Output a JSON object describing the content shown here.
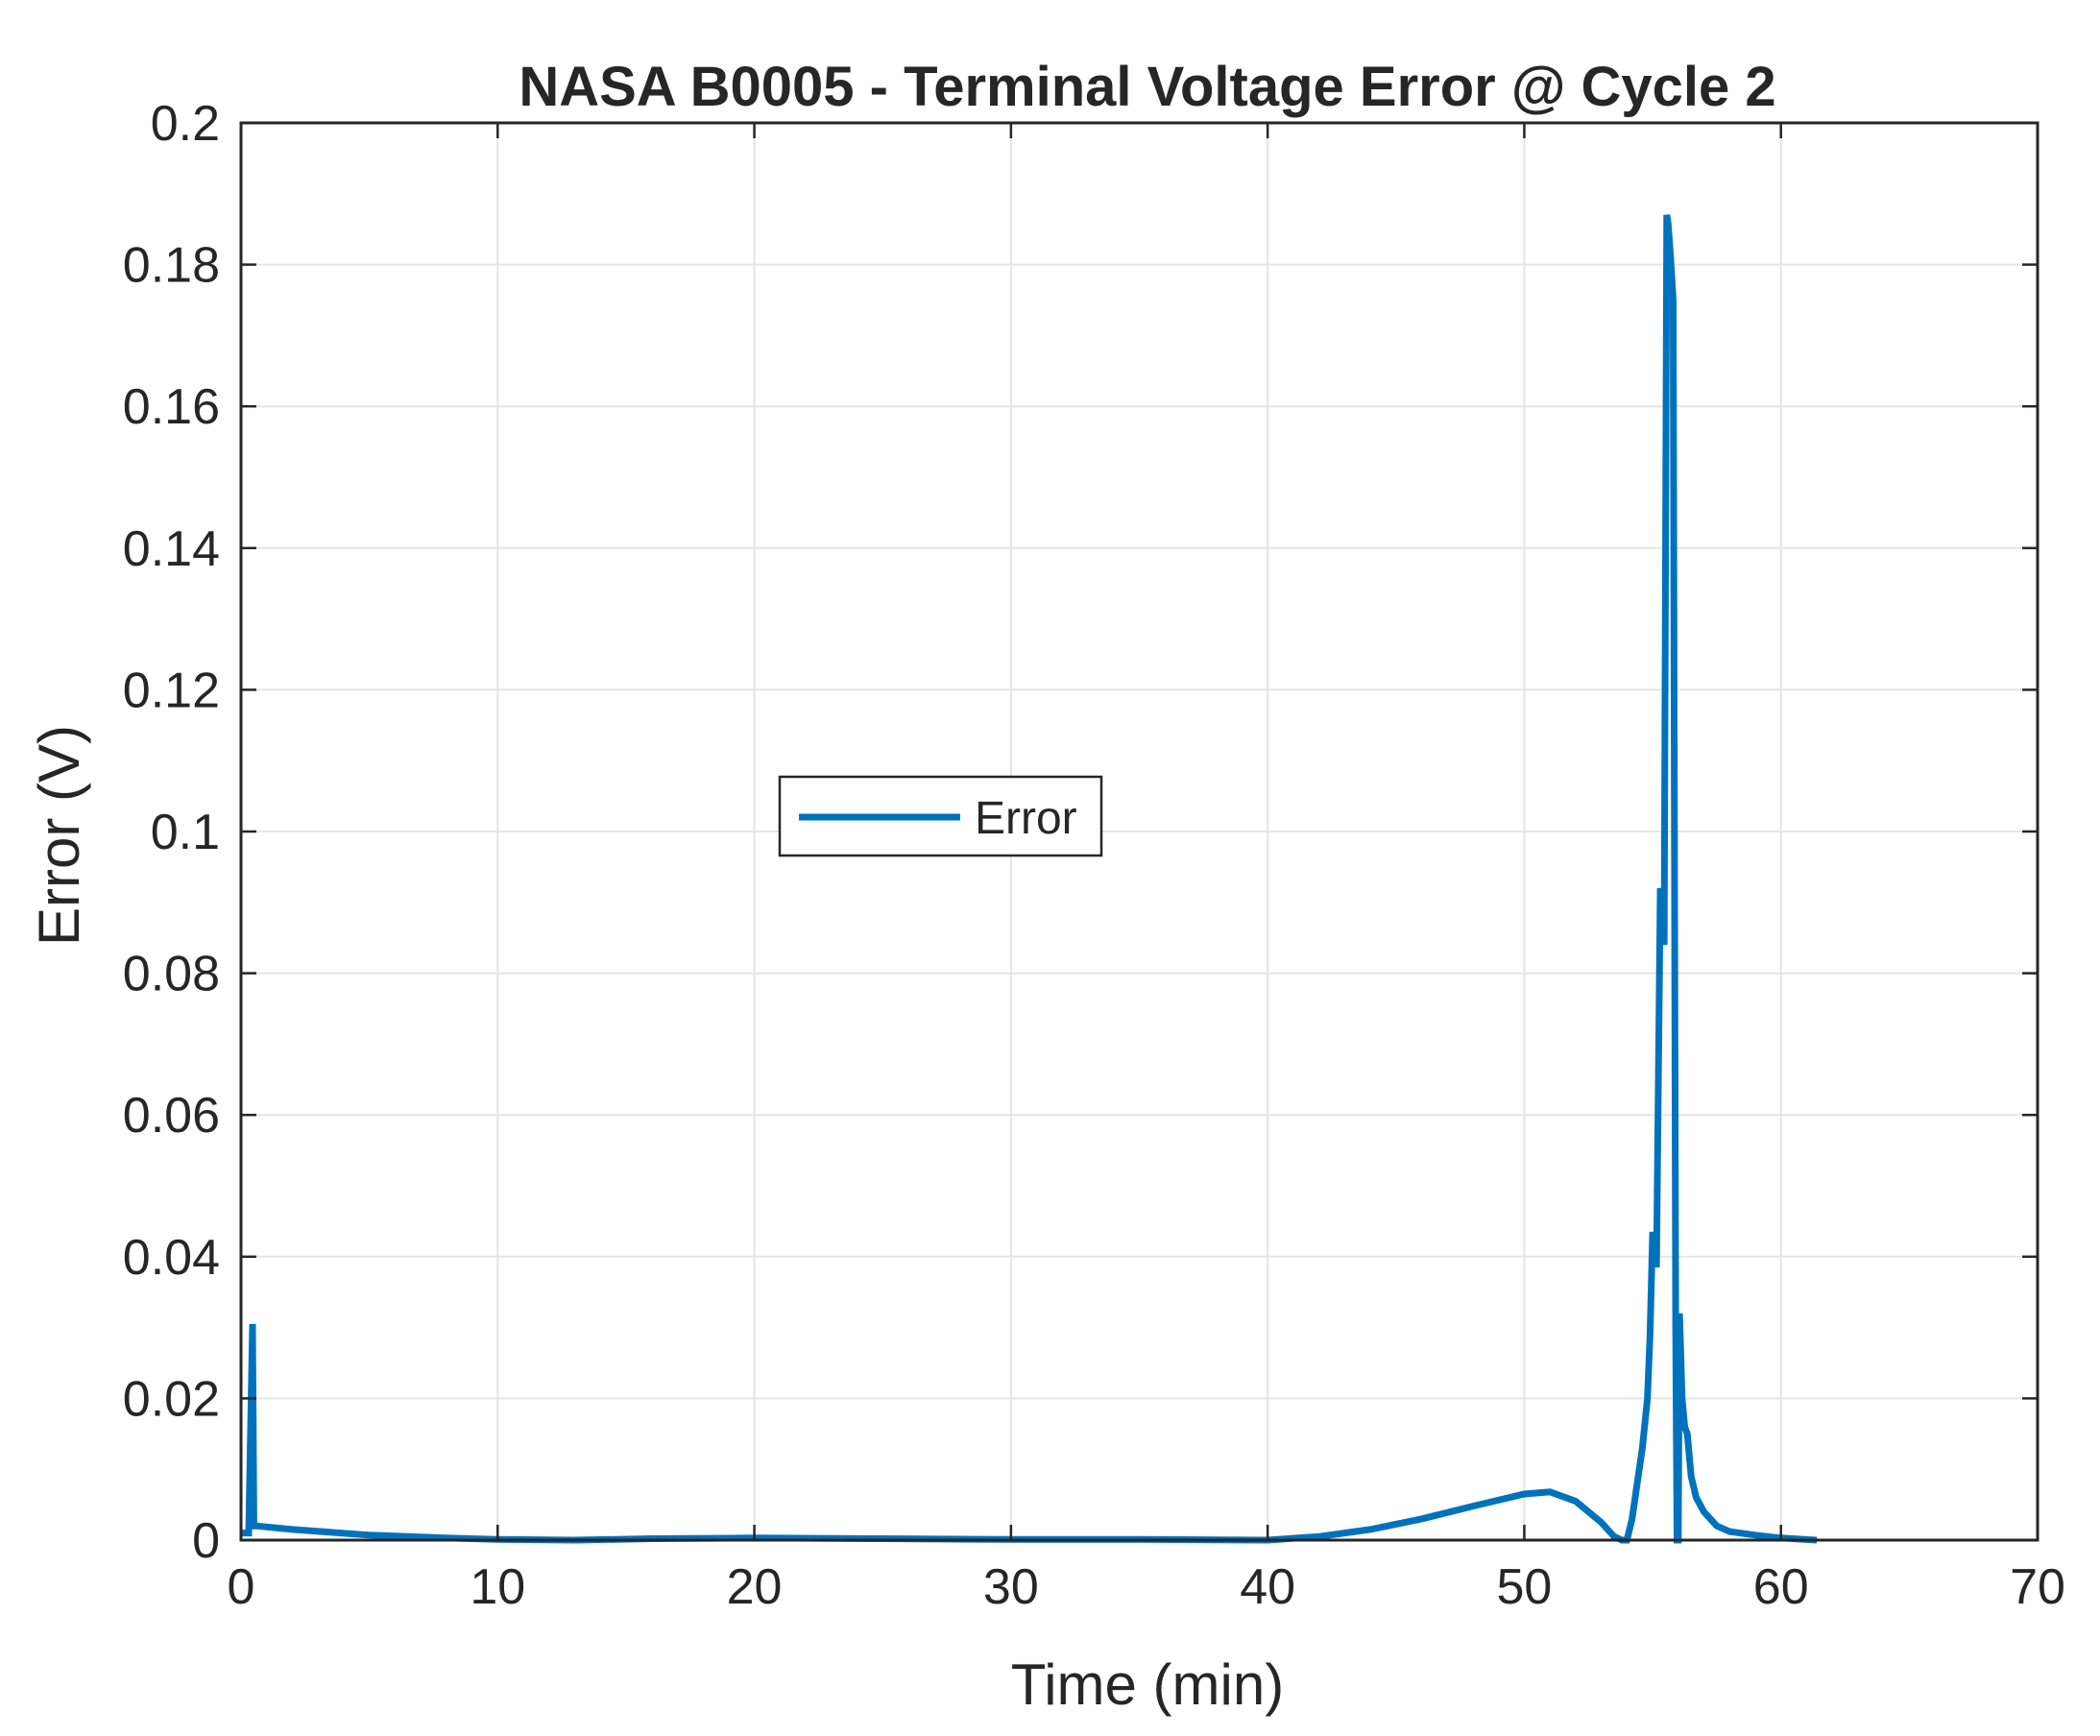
{
  "chart_data": {
    "type": "line",
    "title": "NASA B0005 - Terminal Voltage Error @ Cycle 2",
    "xlabel": "Time (min)",
    "ylabel": "Error (V)",
    "xlim": [
      0,
      70
    ],
    "ylim": [
      0,
      0.2
    ],
    "x_ticks": [
      "0",
      "10",
      "20",
      "30",
      "40",
      "50",
      "60",
      "70"
    ],
    "y_ticks": [
      "0",
      "0.02",
      "0.04",
      "0.06",
      "0.08",
      "0.1",
      "0.12",
      "0.14",
      "0.16",
      "0.18",
      "0.2"
    ],
    "grid": true,
    "legend_placement": "center-left",
    "colors": {
      "series": "#0072BD",
      "grid": "#e5e5e5",
      "axis": "#262626"
    },
    "series": [
      {
        "name": "Error",
        "x": [
          0,
          0.3,
          0.45,
          0.5,
          0.6,
          2,
          5,
          8,
          10,
          13,
          16,
          20,
          25,
          30,
          35,
          40,
          42,
          44,
          46,
          48,
          50,
          51,
          52,
          53,
          53.5,
          53.8,
          54,
          54.2,
          54.4,
          54.6,
          54.8,
          54.9,
          55.0,
          55.15,
          55.3,
          55.45,
          55.55,
          55.6,
          55.7,
          55.8,
          55.85,
          55.9,
          55.95,
          56.0,
          56.05,
          56.15,
          56.25,
          56.35,
          56.5,
          56.7,
          57,
          57.5,
          58,
          59,
          60,
          61.4
        ],
        "y": [
          0.001,
          0.001,
          0.0305,
          0.002,
          0.002,
          0.0015,
          0.0007,
          0.0003,
          0.0001,
          0.0,
          0.0002,
          0.0003,
          0.0002,
          0.0001,
          0.0001,
          0.0,
          0.0005,
          0.0015,
          0.003,
          0.0048,
          0.0065,
          0.0068,
          0.0055,
          0.0025,
          0.0005,
          0.0,
          0.0,
          0.003,
          0.008,
          0.013,
          0.02,
          0.029,
          0.0435,
          0.0385,
          0.092,
          0.084,
          0.187,
          0.186,
          0.181,
          0.175,
          0.1,
          0.03,
          0.0,
          0.0,
          0.032,
          0.02,
          0.016,
          0.015,
          0.009,
          0.006,
          0.004,
          0.002,
          0.0012,
          0.0007,
          0.0003,
          0.0
        ]
      }
    ]
  }
}
